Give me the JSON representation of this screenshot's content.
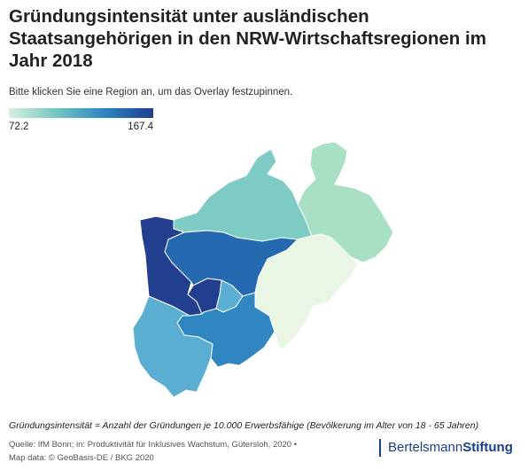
{
  "title": "Gründungsintensität unter ausländischen Staatsangehörigen in den NRW-Wirtschaftsregionen im Jahr 2018",
  "subtitle": "Bitte klicken Sie eine Region an, um das Overlay festzupinnen.",
  "legend": {
    "min": "72.2",
    "max": "167.4"
  },
  "colors": {
    "dark_blue": "#213e8f",
    "blue": "#2569b1",
    "mid_blue": "#2f86c1",
    "light_blue": "#5aaed1",
    "teal": "#7dcbc4",
    "light_green": "#a9dfc2",
    "palest": "#e9f6e4"
  },
  "footer": {
    "note": "Gründungsintensität = Anzahl der Gründungen je 10.000 Erwerbsfähige (Bevölkerung im Alter von 18 - 65 Jahren)",
    "source_line1": "Quelle: IfM Bonn; in: Produktivität für Inklusives Wachstum, Gütersloh, 2020 •",
    "source_line2": "Map data: © GeoBasis-DE / BKG 2020"
  },
  "logo": {
    "part1": "Bertelsmann",
    "part2": "Stiftung"
  }
}
